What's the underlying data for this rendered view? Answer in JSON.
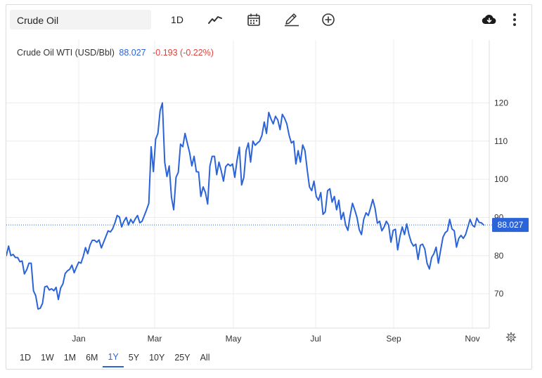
{
  "toolbar": {
    "search_value": "Crude Oil",
    "interval_label": "1D",
    "icons": [
      "line-chart-icon",
      "calendar-icon",
      "pencil-icon",
      "add-circle-icon",
      "cloud-download-icon",
      "more-vertical-icon"
    ]
  },
  "legend": {
    "name": "Crude Oil WTI (USD/Bbl)",
    "price": "88.027",
    "change": "-0.193 (-0.22%)"
  },
  "ranges": [
    {
      "label": "1D",
      "active": false
    },
    {
      "label": "1W",
      "active": false
    },
    {
      "label": "1M",
      "active": false
    },
    {
      "label": "6M",
      "active": false
    },
    {
      "label": "1Y",
      "active": true
    },
    {
      "label": "5Y",
      "active": false
    },
    {
      "label": "10Y",
      "active": false
    },
    {
      "label": "25Y",
      "active": false
    },
    {
      "label": "All",
      "active": false
    }
  ],
  "colors": {
    "line": "#2b63d9",
    "price_tag": "#2b63d9",
    "down": "#e0413a",
    "grid": "#ececec"
  },
  "chart_data": {
    "type": "line",
    "title": "",
    "xlabel": "",
    "ylabel": "",
    "ylim": [
      61,
      128
    ],
    "y_ticks": [
      70,
      80,
      90,
      100,
      110,
      120
    ],
    "x_ticks": [
      "Jan",
      "Mar",
      "May",
      "Jul",
      "Sep",
      "Nov"
    ],
    "last_price_label": "88.027",
    "grid": true,
    "series": [
      {
        "name": "Crude Oil WTI (USD/Bbl)",
        "values": [
          80.0,
          82.5,
          80.0,
          80.3,
          79.5,
          79.5,
          78.4,
          78.6,
          75.2,
          76.3,
          78.0,
          78.0,
          70.8,
          69.5,
          66.0,
          66.2,
          67.5,
          71.8,
          72.0,
          71.0,
          71.3,
          70.8,
          71.7,
          68.5,
          71.5,
          72.6,
          75.3,
          76.0,
          76.4,
          77.5,
          75.5,
          77.0,
          78.3,
          78.0,
          79.8,
          82.1,
          80.5,
          82.8,
          84.0,
          84.0,
          83.5,
          84.1,
          82.0,
          83.5,
          85.0,
          86.5,
          86.2,
          87.0,
          88.6,
          90.5,
          90.1,
          87.5,
          89.0,
          90.0,
          88.0,
          89.5,
          88.5,
          89.6,
          90.5,
          88.6,
          89.0,
          90.5,
          92.0,
          93.7,
          108.5,
          102.0,
          110.5,
          112.0,
          118.0,
          120.0,
          104.5,
          100.7,
          103.5,
          95.3,
          92.0,
          100.5,
          101.8,
          109.2,
          108.5,
          112.0,
          109.5,
          107.0,
          103.5,
          106.0,
          102.0,
          101.9,
          95.5,
          98.0,
          96.5,
          93.5,
          103.5,
          106.0,
          106.0,
          101.2,
          104.5,
          102.2,
          99.5,
          103.3,
          104.0,
          103.5,
          104.0,
          100.5,
          105.0,
          108.4,
          98.5,
          100.5,
          107.5,
          109.5,
          104.5,
          110.0,
          108.9,
          109.5,
          110.0,
          111.5,
          115.0,
          112.0,
          117.5,
          115.8,
          114.5,
          116.5,
          115.5,
          113.0,
          117.0,
          116.0,
          114.5,
          111.5,
          109.5,
          110.0,
          104.0,
          107.5,
          104.5,
          109.0,
          107.5,
          102.5,
          98.0,
          97.0,
          99.5,
          95.5,
          94.5,
          96.5,
          90.8,
          91.5,
          97.0,
          97.5,
          94.0,
          95.5,
          92.0,
          94.5,
          89.5,
          91.3,
          88.0,
          86.6,
          90.5,
          93.7,
          92.0,
          90.0,
          86.8,
          85.5,
          89.5,
          91.2,
          90.5,
          92.5,
          94.7,
          92.4,
          88.5,
          89.0,
          86.5,
          87.5,
          89.0,
          88.0,
          83.5,
          86.6,
          86.9,
          81.5,
          85.0,
          87.5,
          85.5,
          88.3,
          85.5,
          83.5,
          82.5,
          83.0,
          79.0,
          82.7,
          83.0,
          81.7,
          78.0,
          76.5,
          79.5,
          80.5,
          82.2,
          78.0,
          81.5,
          84.8,
          86.0,
          86.5,
          89.5,
          87.0,
          86.5,
          82.2,
          84.5,
          85.3,
          84.5,
          85.5,
          87.5,
          89.5,
          88.0,
          87.5,
          89.8,
          88.7,
          88.6,
          88.027
        ]
      }
    ]
  }
}
